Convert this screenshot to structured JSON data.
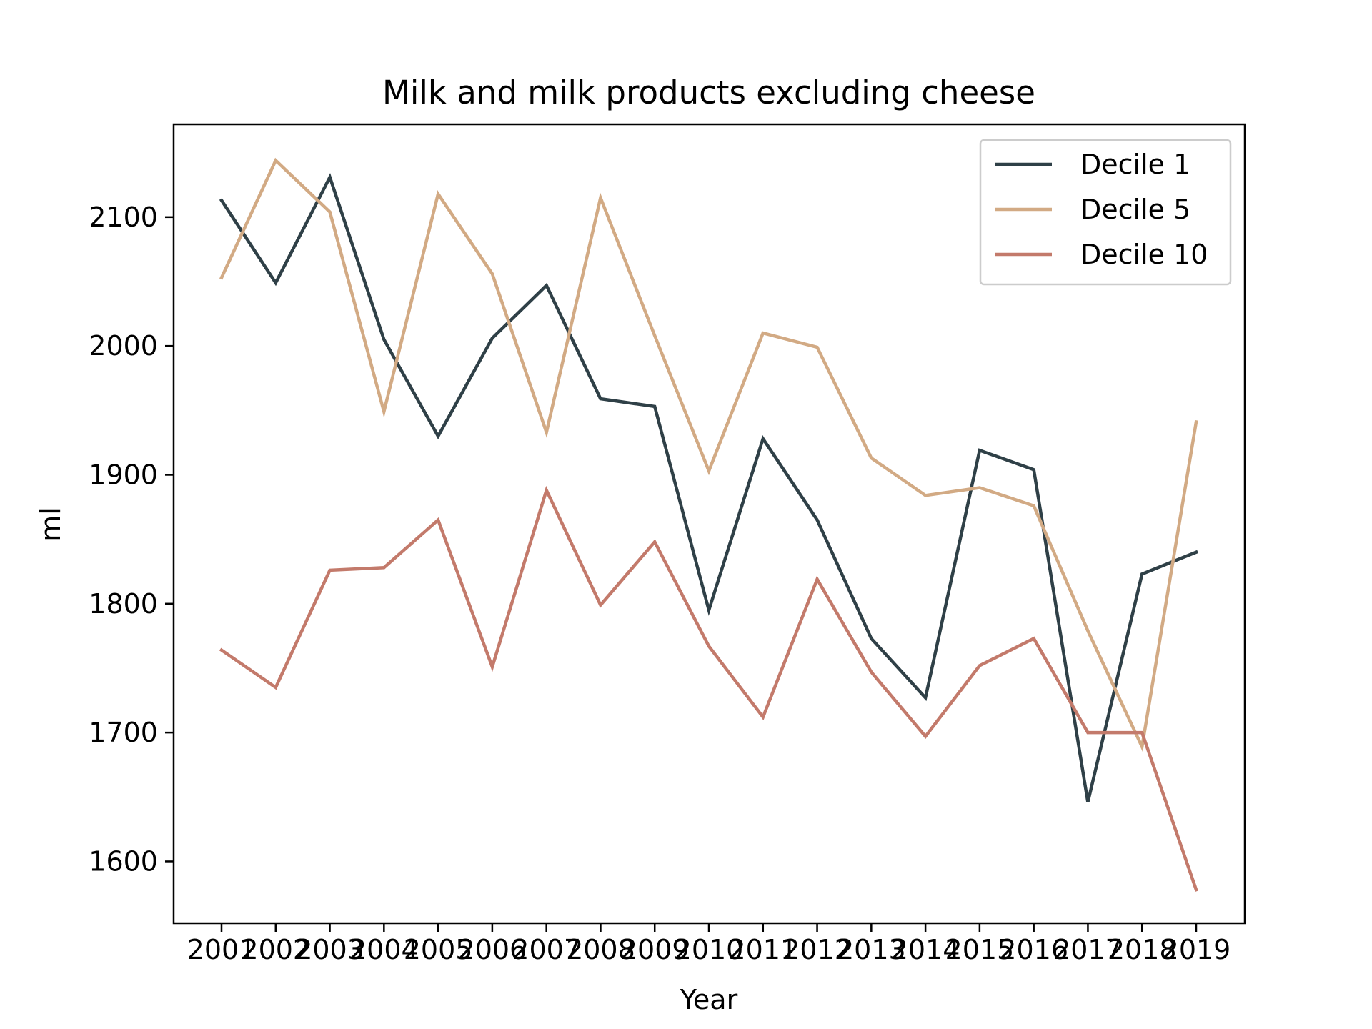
{
  "chart_data": {
    "type": "line",
    "title": "Milk and milk products excluding cheese",
    "xlabel": "Year",
    "ylabel": "ml",
    "categories": [
      "2001",
      "2002",
      "2003",
      "2004",
      "2005",
      "2006",
      "2007",
      "2008",
      "2009",
      "2010",
      "2011",
      "2012",
      "2013",
      "2014",
      "2015",
      "2016",
      "2017",
      "2018",
      "2019"
    ],
    "ylim": [
      1552,
      2172
    ],
    "yticks": [
      1600,
      1700,
      1800,
      1900,
      2000,
      2100
    ],
    "grid": false,
    "legend_position": "top-right",
    "series": [
      {
        "name": "Decile 1",
        "color": "#2f4047",
        "values": [
          2113,
          2049,
          2131,
          2005,
          1930,
          2006,
          2047,
          1959,
          1953,
          1795,
          1928,
          1865,
          1773,
          1727,
          1919,
          1904,
          1646,
          1823,
          1840
        ]
      },
      {
        "name": "Decile 5",
        "color": "#d2aa84",
        "values": [
          2053,
          2144,
          2104,
          1949,
          2118,
          2056,
          1933,
          2115,
          2008,
          1903,
          2010,
          1999,
          1913,
          1884,
          1890,
          1876,
          1779,
          1689,
          1941
        ]
      },
      {
        "name": "Decile 10",
        "color": "#c37a6b",
        "values": [
          1764,
          1735,
          1826,
          1828,
          1865,
          1751,
          1888,
          1799,
          1848,
          1767,
          1712,
          1819,
          1747,
          1697,
          1752,
          1773,
          1700,
          1700,
          1578
        ]
      }
    ]
  }
}
